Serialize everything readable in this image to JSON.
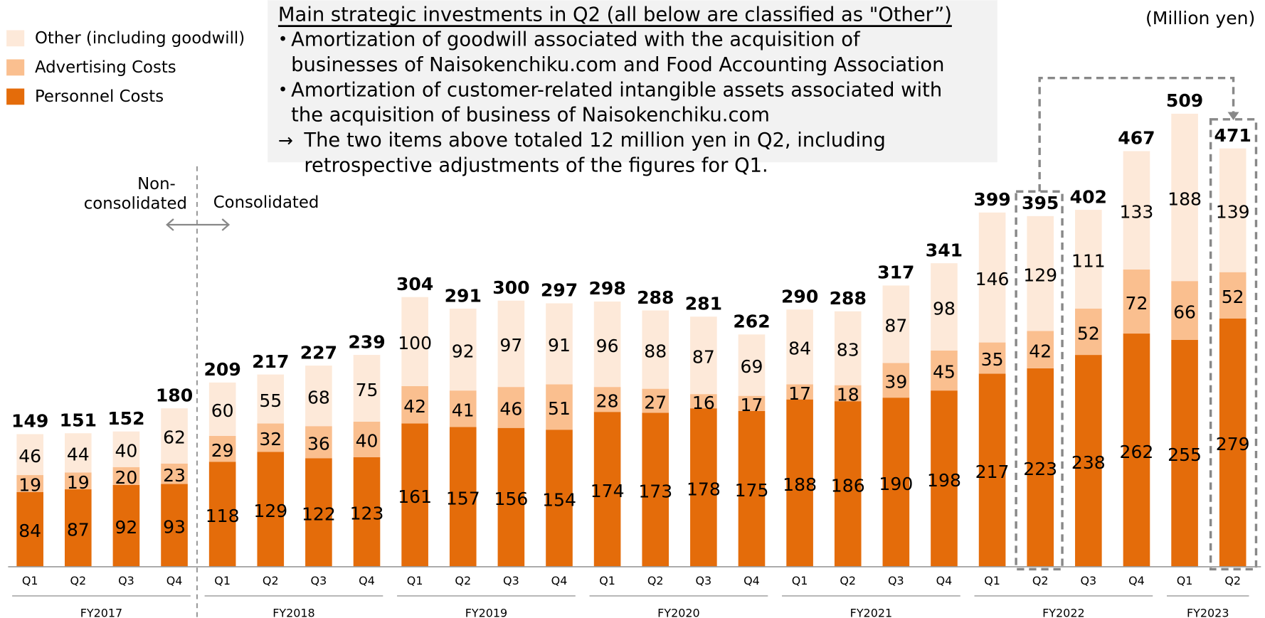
{
  "chart_data": {
    "type": "stacked_bar",
    "unit": "(Million yen)",
    "groups": [
      {
        "label": "FY2017",
        "categories": [
          "Q1",
          "Q2",
          "Q3",
          "Q4"
        ]
      },
      {
        "label": "FY2018",
        "categories": [
          "Q1",
          "Q2",
          "Q3",
          "Q4"
        ]
      },
      {
        "label": "FY2019",
        "categories": [
          "Q1",
          "Q2",
          "Q3",
          "Q4"
        ]
      },
      {
        "label": "FY2020",
        "categories": [
          "Q1",
          "Q2",
          "Q3",
          "Q4"
        ]
      },
      {
        "label": "FY2021",
        "categories": [
          "Q1",
          "Q2",
          "Q3",
          "Q4"
        ]
      },
      {
        "label": "FY2022",
        "categories": [
          "Q1",
          "Q2",
          "Q3",
          "Q4"
        ]
      },
      {
        "label": "FY2023",
        "categories": [
          "Q1",
          "Q2"
        ]
      }
    ],
    "series": [
      {
        "name": "Personnel Costs",
        "color": "#e46c0a",
        "values": [
          84,
          87,
          92,
          93,
          118,
          129,
          122,
          123,
          161,
          157,
          156,
          154,
          174,
          173,
          178,
          175,
          188,
          186,
          190,
          198,
          217,
          223,
          238,
          262,
          255,
          279
        ]
      },
      {
        "name": "Advertising Costs",
        "color": "#fabf8f",
        "values": [
          19,
          19,
          20,
          23,
          29,
          32,
          36,
          40,
          42,
          41,
          46,
          51,
          28,
          27,
          16,
          17,
          17,
          18,
          39,
          45,
          35,
          42,
          52,
          72,
          66,
          52
        ]
      },
      {
        "name": "Other (including goodwill)",
        "color": "#fde9d9",
        "values": [
          46,
          44,
          40,
          62,
          60,
          55,
          68,
          75,
          100,
          92,
          97,
          91,
          96,
          88,
          87,
          69,
          84,
          83,
          87,
          98,
          146,
          129,
          111,
          133,
          188,
          139
        ]
      }
    ],
    "totals": [
      149,
      151,
      152,
      180,
      209,
      217,
      227,
      239,
      304,
      291,
      300,
      297,
      298,
      288,
      281,
      262,
      290,
      288,
      317,
      341,
      399,
      395,
      402,
      467,
      509,
      471
    ],
    "ylim": [
      0,
      520
    ],
    "annotations": {
      "non_consolidated": [
        "Non-",
        "consolidated"
      ],
      "consolidated": "Consolidated"
    },
    "note": {
      "title": "Main strategic investments in Q2 (all below are classified as \"Other”)",
      "bullets": [
        {
          "marker": "•",
          "lines": [
            "Amortization of goodwill associated with the acquisition of",
            "businesses of Naisokenchiku.com and Food Accounting Association"
          ]
        },
        {
          "marker": "•",
          "lines": [
            "Amortization of customer-related intangible assets associated with",
            "the acquisition of business of Naisokenchiku.com"
          ]
        },
        {
          "marker": "→",
          "lines": [
            "The two items above totaled 12 million yen in Q2, including",
            "retrospective adjustments of the figures for Q1."
          ]
        }
      ]
    }
  }
}
